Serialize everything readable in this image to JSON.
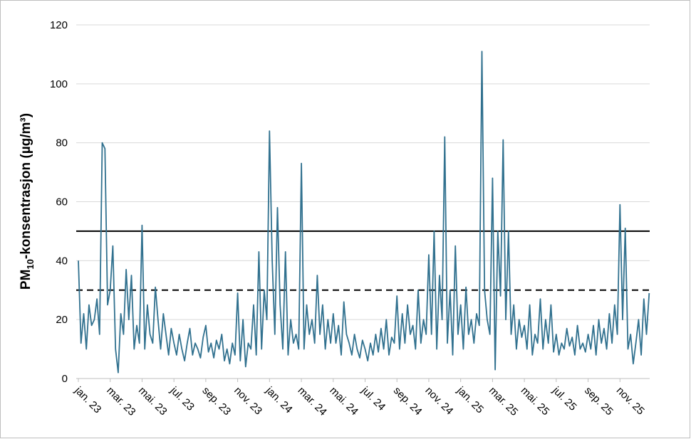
{
  "chart_data": {
    "type": "line",
    "ylabel": {
      "main": "PM",
      "sub": "10",
      "rest": "-konsentrasjon (µg/m³)"
    },
    "ylim": [
      0,
      120
    ],
    "yticks": [
      0,
      20,
      40,
      60,
      80,
      100,
      120
    ],
    "grid": true,
    "reference_lines": [
      {
        "value": 50,
        "style": "solid",
        "color": "#000000"
      },
      {
        "value": 30,
        "style": "dashed",
        "color": "#000000"
      }
    ],
    "categories": [
      "jan. 23",
      null,
      null,
      null,
      null,
      null,
      null,
      null,
      null,
      null,
      null,
      null,
      "mar. 23",
      null,
      null,
      null,
      null,
      null,
      null,
      null,
      null,
      null,
      null,
      null,
      "mai. 23",
      null,
      null,
      null,
      null,
      null,
      null,
      null,
      null,
      null,
      null,
      null,
      "jul. 23",
      null,
      null,
      null,
      null,
      null,
      null,
      null,
      null,
      null,
      null,
      null,
      "sep. 23",
      null,
      null,
      null,
      null,
      null,
      null,
      null,
      null,
      null,
      null,
      null,
      "nov. 23",
      null,
      null,
      null,
      null,
      null,
      null,
      null,
      null,
      null,
      null,
      null,
      "jan. 24",
      null,
      null,
      null,
      null,
      null,
      null,
      null,
      null,
      null,
      null,
      null,
      "mar. 24",
      null,
      null,
      null,
      null,
      null,
      null,
      null,
      null,
      null,
      null,
      null,
      "mai. 24",
      null,
      null,
      null,
      null,
      null,
      null,
      null,
      null,
      null,
      null,
      null,
      "jul. 24",
      null,
      null,
      null,
      null,
      null,
      null,
      null,
      null,
      null,
      null,
      null,
      "sep. 24",
      null,
      null,
      null,
      null,
      null,
      null,
      null,
      null,
      null,
      null,
      null,
      "nov. 24",
      null,
      null,
      null,
      null,
      null,
      null,
      null,
      null,
      null,
      null,
      null,
      "jan. 25",
      null,
      null,
      null,
      null,
      null,
      null,
      null,
      null,
      null,
      null,
      null,
      "mar. 25",
      null,
      null,
      null,
      null,
      null,
      null,
      null,
      null,
      null,
      null,
      null,
      "mai. 25",
      null,
      null,
      null,
      null,
      null,
      null,
      null,
      null,
      null,
      null,
      null,
      "jul. 25",
      null,
      null,
      null,
      null,
      null,
      null,
      null,
      null,
      null,
      null,
      null,
      "sep. 25",
      null,
      null,
      null,
      null,
      null,
      null,
      null,
      null,
      null,
      null,
      null,
      "nov. 25",
      null,
      null,
      null,
      null,
      null,
      null,
      null,
      null,
      null,
      null,
      null
    ],
    "series": [
      {
        "name": "PM10",
        "color": "#31718f",
        "values": [
          40,
          12,
          22,
          10,
          25,
          18,
          20,
          27,
          15,
          80,
          78,
          25,
          30,
          45,
          10,
          2,
          22,
          15,
          37,
          20,
          35,
          10,
          18,
          12,
          52,
          10,
          25,
          15,
          12,
          31,
          20,
          10,
          22,
          15,
          8,
          17,
          12,
          8,
          15,
          10,
          6,
          12,
          17,
          8,
          12,
          10,
          7,
          14,
          18,
          9,
          12,
          7,
          13,
          10,
          15,
          6,
          10,
          5,
          12,
          8,
          29,
          6,
          20,
          4,
          12,
          10,
          25,
          8,
          43,
          10,
          30,
          20,
          84,
          40,
          15,
          58,
          25,
          10,
          43,
          8,
          20,
          12,
          15,
          10,
          73,
          10,
          25,
          15,
          20,
          12,
          35,
          15,
          25,
          10,
          20,
          12,
          22,
          12,
          18,
          8,
          26,
          15,
          12,
          8,
          15,
          10,
          7,
          13,
          10,
          6,
          12,
          8,
          15,
          9,
          17,
          10,
          20,
          8,
          14,
          12,
          28,
          10,
          22,
          12,
          25,
          15,
          18,
          10,
          30,
          12,
          20,
          15,
          42,
          15,
          50,
          10,
          35,
          20,
          82,
          12,
          30,
          8,
          45,
          15,
          25,
          10,
          31,
          15,
          20,
          12,
          22,
          18,
          111,
          30,
          20,
          15,
          68,
          3,
          50,
          28,
          81,
          20,
          50,
          15,
          25,
          10,
          20,
          14,
          18,
          10,
          25,
          8,
          15,
          12,
          27,
          10,
          20,
          12,
          25,
          9,
          15,
          8,
          12,
          10,
          17,
          11,
          14,
          8,
          18,
          10,
          12,
          9,
          15,
          10,
          18,
          8,
          20,
          12,
          17,
          10,
          22,
          12,
          25,
          15,
          59,
          20,
          51,
          10,
          15,
          5,
          12,
          20,
          8,
          27,
          15,
          29
        ]
      }
    ]
  }
}
